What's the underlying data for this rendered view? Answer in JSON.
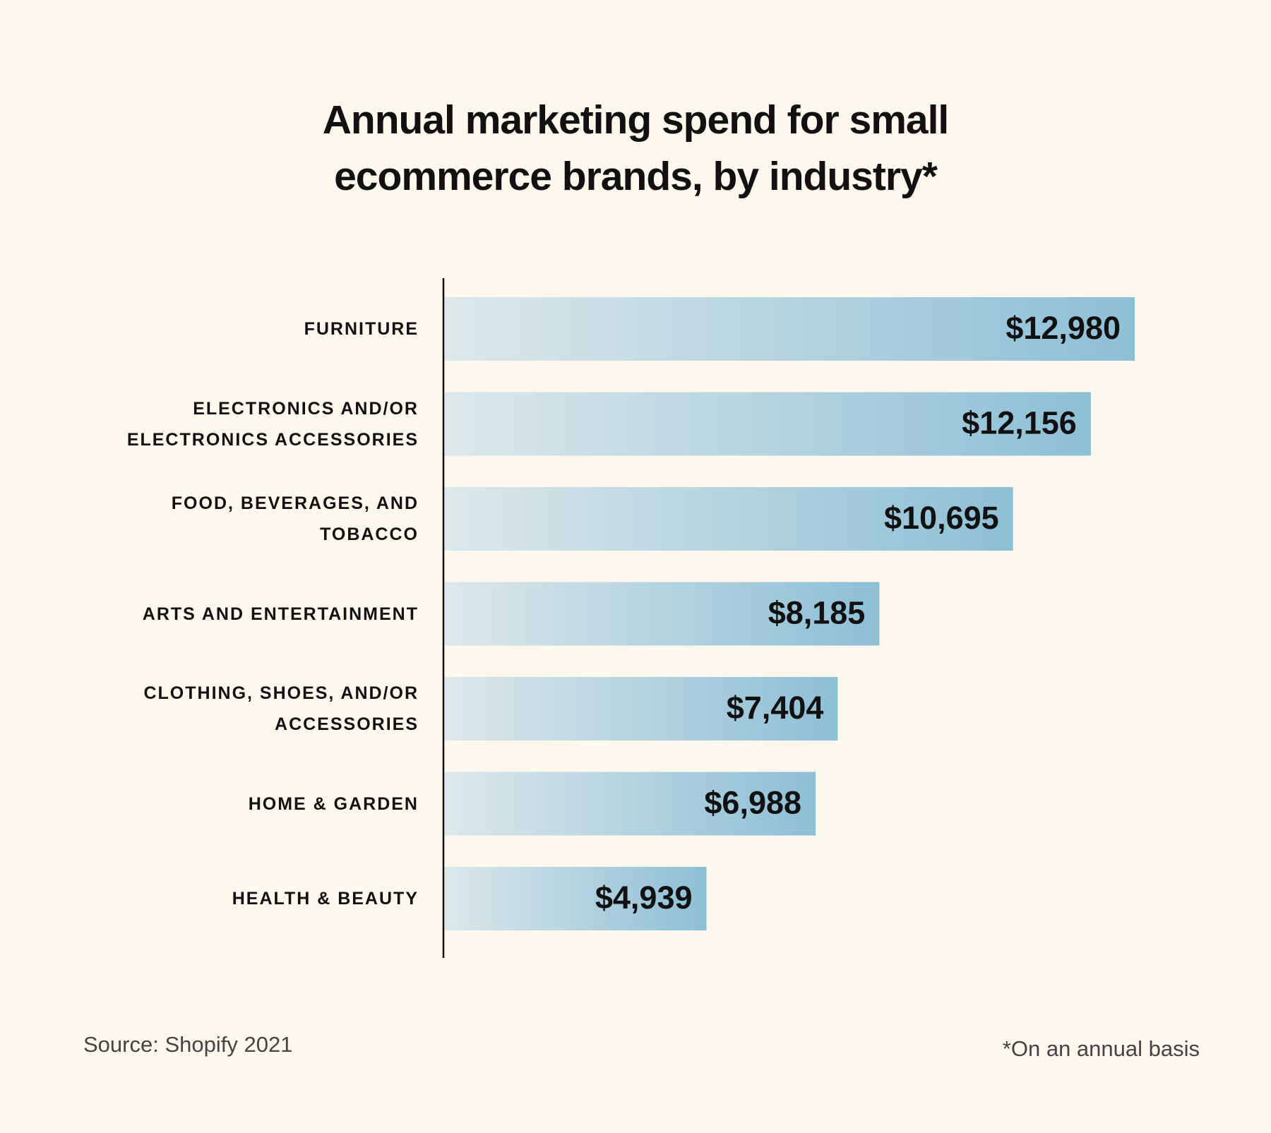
{
  "chart_data": {
    "type": "bar",
    "orientation": "horizontal",
    "title": "Annual marketing spend for small ecommerce brands, by industry*",
    "categories": [
      "FURNITURE",
      "ELECTRONICS AND/OR ELECTRONICS ACCESSORIES",
      "FOOD, BEVERAGES, AND TOBACCO",
      "ARTS AND ENTERTAINMENT",
      "CLOTHING, SHOES, AND/OR ACCESSORIES",
      "HOME & GARDEN",
      "HEALTH & BEAUTY"
    ],
    "values": [
      12980,
      12156,
      10695,
      8185,
      7404,
      6988,
      4939
    ],
    "value_labels": [
      "$12,980",
      "$12,156",
      "$10,695",
      "$8,185",
      "$7,404",
      "$6,988",
      "$4,939"
    ],
    "color": "#8dbfd6",
    "source": "Source: Shopify 2021",
    "footnote": "*On an annual basis"
  }
}
